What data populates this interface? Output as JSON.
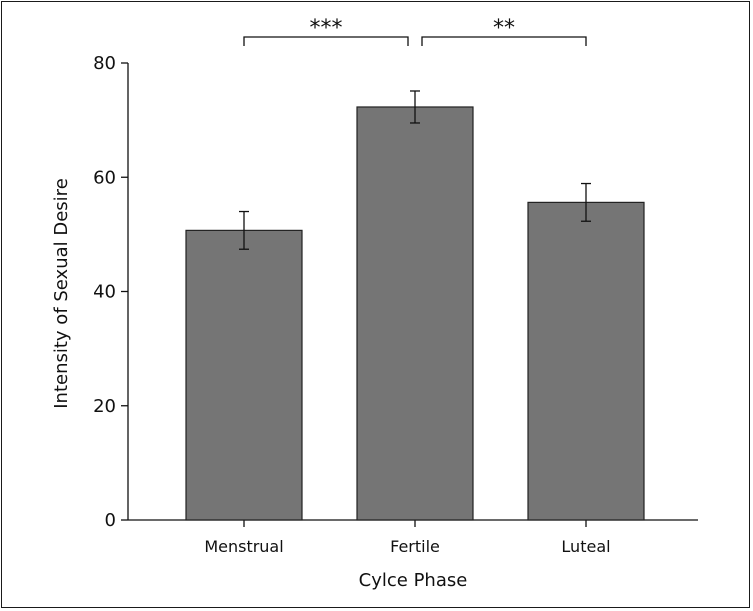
{
  "chart_data": {
    "type": "bar",
    "categories": [
      "Menstrual",
      "Fertile",
      "Luteal"
    ],
    "values": [
      50.7,
      72.3,
      55.6
    ],
    "errors": [
      3.3,
      2.8,
      3.3
    ],
    "xlabel": "Cylce Phase",
    "ylabel": "Intensity of Sexual Desire",
    "ylim": [
      0,
      80
    ],
    "yticks": [
      "0",
      "20",
      "40",
      "60",
      "80"
    ],
    "grid": false,
    "bar_color": "#757575",
    "significance": [
      {
        "from": "Menstrual",
        "to": "Fertile",
        "label": "***"
      },
      {
        "from": "Fertile",
        "to": "Luteal",
        "label": "**"
      }
    ]
  }
}
